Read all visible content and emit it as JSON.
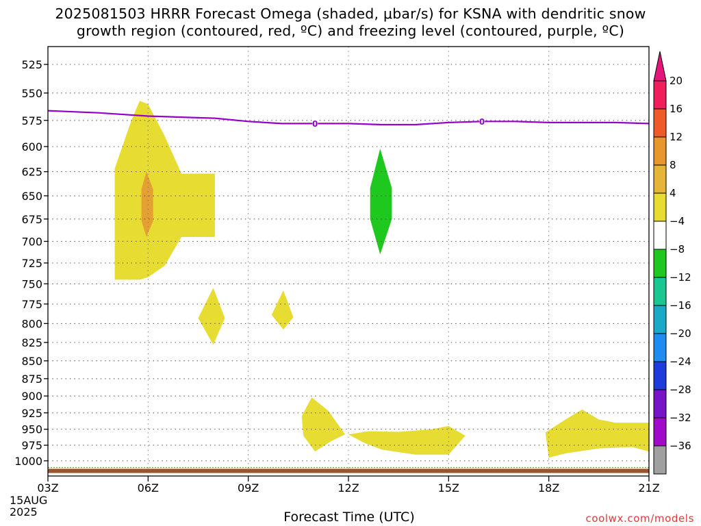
{
  "title": {
    "line1": "2025081503 HRRR Forecast Omega (shaded, μbar/s) for KSNA with dendritic snow",
    "line2": "growth region (contoured, red, ºC) and freezing level (contoured, purple, ºC)"
  },
  "credit": "coolwx.com/models",
  "chart_data": {
    "type": "contour",
    "title": "2025081503 HRRR Forecast Omega (shaded, μbar/s) for KSNA with dendritic snow growth region (contoured, red, ºC) and freezing level (contoured, purple, ºC)",
    "xlabel": "Forecast Time (UTC)",
    "ylabel": "",
    "x_tick_labels": [
      "03Z",
      "06Z",
      "09Z",
      "12Z",
      "15Z",
      "18Z",
      "21Z"
    ],
    "x_date_label": [
      "15AUG",
      "2025"
    ],
    "x_range_hours_utc": [
      3,
      21
    ],
    "y_tick_labels": [
      525,
      550,
      575,
      600,
      625,
      650,
      675,
      700,
      725,
      750,
      775,
      800,
      825,
      850,
      875,
      900,
      925,
      950,
      975,
      1000
    ],
    "y_range_hpa": [
      510,
      1025
    ],
    "y_reversed": true,
    "y_scale": "log-pressure",
    "grid": true,
    "colorbar": {
      "levels": [
        20,
        16,
        12,
        8,
        4,
        -4,
        -8,
        -12,
        -16,
        -20,
        -24,
        -28,
        -32,
        -36
      ],
      "colors": [
        "#f01e5a",
        "#f05a28",
        "#e8962e",
        "#e6b437",
        "#e6dc32",
        "#ffffff",
        "#1ec81e",
        "#19c891",
        "#19aac8",
        "#1e8cf0",
        "#1e3cdc",
        "#7814c8",
        "#a00ac8",
        "#a0a0a0"
      ],
      "top_arrow_color": "#e6147d",
      "bottom_arrow_color": "#000000"
    },
    "freezing_level": {
      "color": "#9600c8",
      "label": "0",
      "points": [
        {
          "hour": 3.0,
          "hpa": 566
        },
        {
          "hour": 4.5,
          "hpa": 568
        },
        {
          "hour": 6.0,
          "hpa": 571
        },
        {
          "hour": 7.0,
          "hpa": 572
        },
        {
          "hour": 8.0,
          "hpa": 573
        },
        {
          "hour": 9.0,
          "hpa": 576
        },
        {
          "hour": 10.0,
          "hpa": 578
        },
        {
          "hour": 11.0,
          "hpa": 578
        },
        {
          "hour": 12.0,
          "hpa": 578
        },
        {
          "hour": 13.0,
          "hpa": 579
        },
        {
          "hour": 14.0,
          "hpa": 579
        },
        {
          "hour": 15.0,
          "hpa": 577
        },
        {
          "hour": 16.0,
          "hpa": 576
        },
        {
          "hour": 17.0,
          "hpa": 576
        },
        {
          "hour": 18.0,
          "hpa": 577
        },
        {
          "hour": 19.0,
          "hpa": 577
        },
        {
          "hour": 20.0,
          "hpa": 577
        },
        {
          "hour": 21.0,
          "hpa": 578
        }
      ],
      "label_positions": [
        {
          "hour": 11.0,
          "hpa": 578
        },
        {
          "hour": 16.0,
          "hpa": 576
        }
      ]
    },
    "omega_regions": [
      {
        "name": "yellow-main",
        "range": "4 to 8",
        "color": "#e6dc32",
        "points": [
          [
            5.0,
            622
          ],
          [
            5.0,
            745
          ],
          [
            5.5,
            745
          ],
          [
            5.75,
            745
          ],
          [
            6.0,
            742
          ],
          [
            6.5,
            728
          ],
          [
            7.0,
            695
          ],
          [
            8.0,
            695
          ],
          [
            8.0,
            627
          ],
          [
            7.0,
            627
          ],
          [
            6.5,
            590
          ],
          [
            6.0,
            560
          ],
          [
            5.75,
            557
          ],
          [
            5.5,
            575
          ]
        ]
      },
      {
        "name": "orange-core",
        "range": "8 to 12",
        "color": "#e6a032",
        "points": [
          [
            5.8,
            643
          ],
          [
            5.95,
            625
          ],
          [
            6.15,
            643
          ],
          [
            6.15,
            677
          ],
          [
            5.95,
            695
          ],
          [
            5.8,
            677
          ]
        ]
      },
      {
        "name": "green-descent",
        "range": "-4 to -8",
        "color": "#1ec81e",
        "points": [
          [
            12.65,
            642
          ],
          [
            12.95,
            602
          ],
          [
            13.3,
            642
          ],
          [
            13.3,
            675
          ],
          [
            12.95,
            715
          ],
          [
            12.65,
            675
          ]
        ]
      },
      {
        "name": "yellow-blob-08z",
        "range": "4 to 8",
        "color": "#e6dc32",
        "points": [
          [
            7.5,
            793
          ],
          [
            7.95,
            755
          ],
          [
            8.3,
            793
          ],
          [
            7.95,
            828
          ]
        ]
      },
      {
        "name": "yellow-blob-10z",
        "range": "4 to 8",
        "color": "#e6dc32",
        "points": [
          [
            9.7,
            789
          ],
          [
            10.05,
            758
          ],
          [
            10.35,
            792
          ],
          [
            10.05,
            808
          ]
        ]
      },
      {
        "name": "yellow-low-11z",
        "range": "4 to 8",
        "color": "#e6dc32",
        "points": [
          [
            10.6,
            930
          ],
          [
            10.9,
            902
          ],
          [
            11.4,
            922
          ],
          [
            11.9,
            958
          ],
          [
            11.5,
            968
          ],
          [
            11.0,
            985
          ],
          [
            10.65,
            960
          ]
        ]
      },
      {
        "name": "yellow-low-12z-15z",
        "range": "4 to 8",
        "color": "#e6dc32",
        "points": [
          [
            12.0,
            958
          ],
          [
            12.6,
            953
          ],
          [
            13.5,
            954
          ],
          [
            14.5,
            950
          ],
          [
            15.0,
            945
          ],
          [
            15.5,
            960
          ],
          [
            15.0,
            990
          ],
          [
            14.0,
            990
          ],
          [
            13.0,
            982
          ],
          [
            12.5,
            972
          ]
        ]
      },
      {
        "name": "yellow-low-18z-21z",
        "range": "4 to 8",
        "color": "#e6dc32",
        "points": [
          [
            17.9,
            955
          ],
          [
            18.5,
            935
          ],
          [
            19.0,
            920
          ],
          [
            19.5,
            935
          ],
          [
            20.0,
            940
          ],
          [
            21.0,
            940
          ],
          [
            21.0,
            985
          ],
          [
            20.5,
            978
          ],
          [
            19.5,
            980
          ],
          [
            18.5,
            988
          ],
          [
            18.0,
            995
          ]
        ]
      }
    ],
    "surface_strip": {
      "color": "#a0522d",
      "from_hpa": 1013,
      "to_hpa": 1020
    }
  }
}
